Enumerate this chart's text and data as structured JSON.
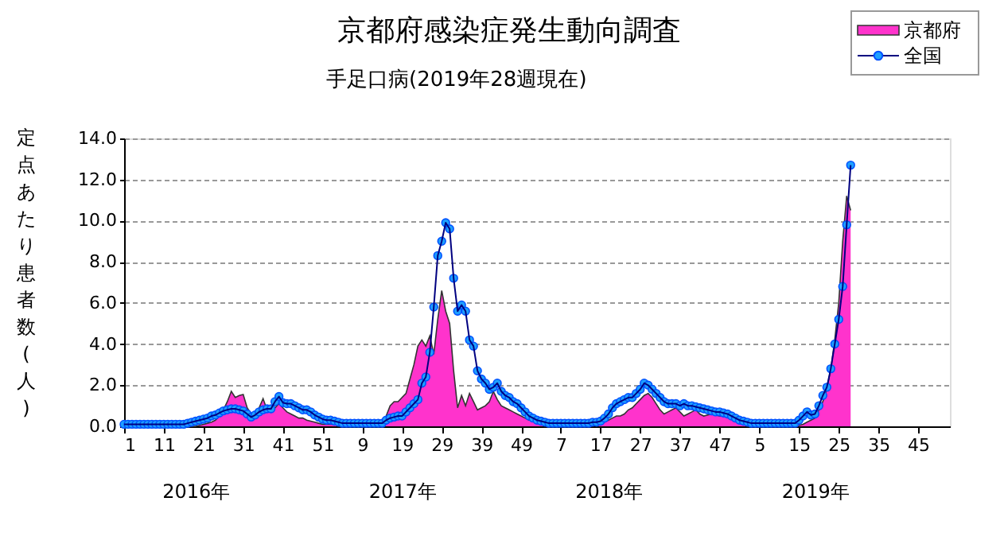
{
  "chart_data": {
    "type": "line",
    "title": "京都府感染症発生動向調査",
    "subtitle": "手足口病(2019年28週現在)",
    "ylabel": "定点あたり患者数(人)",
    "categories": [
      "1",
      null,
      null,
      null,
      null,
      null,
      null,
      null,
      null,
      null,
      "11",
      null,
      null,
      null,
      null,
      null,
      null,
      null,
      null,
      null,
      "21",
      null,
      null,
      null,
      null,
      null,
      null,
      null,
      null,
      null,
      "31",
      null,
      null,
      null,
      null,
      null,
      null,
      null,
      null,
      null,
      "41",
      null,
      null,
      null,
      null,
      null,
      null,
      null,
      null,
      null,
      "51",
      null,
      null,
      null,
      null,
      null,
      null,
      null,
      null,
      null,
      "9",
      null,
      null,
      null,
      null,
      null,
      null,
      null,
      null,
      null,
      "19",
      null,
      null,
      null,
      null,
      null,
      null,
      null,
      null,
      null,
      "29",
      null,
      null,
      null,
      null,
      null,
      null,
      null,
      null,
      null,
      "39",
      null,
      null,
      null,
      null,
      null,
      null,
      null,
      null,
      null,
      "49",
      null,
      null,
      null,
      null,
      null,
      null,
      null,
      null,
      null,
      "7",
      null,
      null,
      null,
      null,
      null,
      null,
      null,
      null,
      null,
      "17",
      null,
      null,
      null,
      null,
      null,
      null,
      null,
      null,
      null,
      "27",
      null,
      null,
      null,
      null,
      null,
      null,
      null,
      null,
      null,
      "37",
      null,
      null,
      null,
      null,
      null,
      null,
      null,
      null,
      null,
      "47",
      null,
      null,
      null,
      null,
      null,
      null,
      null,
      null,
      null,
      "5",
      null,
      null,
      null,
      null,
      null,
      null,
      null,
      null,
      null,
      "15",
      null,
      null,
      null,
      null,
      null,
      null,
      null,
      null,
      null,
      "25",
      null,
      null,
      null,
      null,
      null,
      null,
      null,
      null,
      null,
      "35",
      null,
      null,
      null,
      null,
      null,
      null,
      null,
      null,
      null,
      "45",
      null,
      null,
      null,
      null,
      null,
      null,
      null
    ],
    "series": [
      {
        "name": "京都府",
        "type": "area",
        "color": "#ff33cc",
        "values": [
          0,
          0,
          0,
          0,
          0,
          0,
          0,
          0,
          0,
          0,
          0,
          0,
          0,
          0,
          0,
          0,
          0,
          0,
          0,
          0.05,
          0.1,
          0.15,
          0.2,
          0.3,
          0.5,
          0.8,
          1.2,
          1.7,
          1.4,
          1.5,
          1.55,
          0.9,
          0.6,
          0.7,
          0.9,
          1.35,
          0.8,
          0.8,
          0.9,
          1.1,
          0.9,
          0.7,
          0.6,
          0.5,
          0.4,
          0.4,
          0.3,
          0.25,
          0.2,
          0.15,
          0.1,
          0.1,
          0.1,
          0.1,
          0.1,
          0.1,
          0.05,
          0.05,
          0.05,
          0.05,
          0.05,
          0.05,
          0.05,
          0.05,
          0.05,
          0.1,
          0.5,
          1.0,
          1.2,
          1.2,
          1.4,
          1.6,
          2.3,
          3.0,
          3.9,
          4.2,
          3.9,
          4.4,
          3.5,
          5.2,
          6.6,
          5.6,
          5.0,
          2.7,
          0.9,
          1.5,
          1.0,
          1.6,
          1.2,
          0.8,
          0.9,
          1.0,
          1.2,
          1.7,
          1.3,
          1.0,
          0.9,
          0.8,
          0.7,
          0.6,
          0.5,
          0.4,
          0.3,
          0.3,
          0.2,
          0.15,
          0.1,
          0.1,
          0.1,
          0.1,
          0.1,
          0.1,
          0.1,
          0.1,
          0.1,
          0.1,
          0.1,
          0.1,
          0.1,
          0.1,
          0.15,
          0.2,
          0.3,
          0.4,
          0.5,
          0.5,
          0.6,
          0.8,
          0.9,
          1.1,
          1.3,
          1.5,
          1.6,
          1.4,
          1.1,
          0.8,
          0.6,
          0.7,
          0.8,
          0.9,
          0.7,
          0.5,
          0.6,
          0.7,
          0.8,
          0.6,
          0.5,
          0.55,
          0.6,
          0.55,
          0.5,
          0.5,
          0.5,
          0.4,
          0.3,
          0.3,
          0.2,
          0.1,
          0.05,
          0.05,
          0.05,
          0.05,
          0.05,
          0.05,
          0.05,
          0.05,
          0.05,
          0.05,
          0.05,
          0.05,
          0.05,
          0.1,
          0.2,
          0.3,
          0.4,
          0.8,
          1.2,
          1.8,
          2.8,
          4.2,
          6.0,
          9.0,
          11.2,
          10.5,
          null,
          null,
          null,
          null,
          null,
          null,
          null,
          null,
          null,
          null,
          null,
          null,
          null,
          null,
          null,
          null,
          null,
          null,
          null,
          null,
          null,
          null,
          null,
          null
        ]
      },
      {
        "name": "全国",
        "color": "#1ea0ff",
        "marker": "circle",
        "values": [
          0.1,
          0.1,
          0.1,
          0.1,
          0.1,
          0.1,
          0.1,
          0.1,
          0.1,
          0.1,
          0.1,
          0.1,
          0.1,
          0.1,
          0.1,
          0.1,
          0.15,
          0.2,
          0.25,
          0.3,
          0.35,
          0.4,
          0.5,
          0.55,
          0.65,
          0.75,
          0.8,
          0.85,
          0.85,
          0.8,
          0.75,
          0.6,
          0.45,
          0.55,
          0.7,
          0.8,
          0.85,
          0.85,
          1.2,
          1.45,
          1.15,
          1.1,
          1.1,
          1.0,
          0.9,
          0.8,
          0.8,
          0.7,
          0.55,
          0.45,
          0.35,
          0.3,
          0.3,
          0.25,
          0.2,
          0.15,
          0.15,
          0.15,
          0.15,
          0.15,
          0.15,
          0.15,
          0.15,
          0.15,
          0.15,
          0.15,
          0.3,
          0.4,
          0.45,
          0.5,
          0.5,
          0.7,
          0.9,
          1.1,
          1.3,
          2.1,
          2.4,
          3.6,
          5.8,
          8.3,
          9.0,
          9.9,
          9.6,
          7.2,
          5.6,
          5.9,
          5.6,
          4.2,
          3.9,
          2.7,
          2.3,
          2.1,
          1.8,
          1.9,
          2.1,
          1.7,
          1.5,
          1.4,
          1.2,
          1.1,
          0.9,
          0.7,
          0.5,
          0.4,
          0.3,
          0.25,
          0.2,
          0.15,
          0.15,
          0.15,
          0.15,
          0.15,
          0.15,
          0.15,
          0.15,
          0.15,
          0.15,
          0.15,
          0.2,
          0.2,
          0.25,
          0.4,
          0.6,
          0.9,
          1.1,
          1.2,
          1.3,
          1.4,
          1.4,
          1.6,
          1.8,
          2.1,
          2.0,
          1.8,
          1.6,
          1.4,
          1.2,
          1.1,
          1.1,
          1.1,
          1.0,
          1.1,
          1.0,
          1.0,
          0.95,
          0.9,
          0.85,
          0.8,
          0.75,
          0.7,
          0.7,
          0.65,
          0.6,
          0.5,
          0.4,
          0.3,
          0.25,
          0.2,
          0.15,
          0.15,
          0.15,
          0.15,
          0.15,
          0.15,
          0.15,
          0.15,
          0.15,
          0.15,
          0.15,
          0.15,
          0.3,
          0.5,
          0.7,
          0.55,
          0.6,
          1.0,
          1.5,
          1.9,
          2.8,
          4.0,
          5.2,
          6.8,
          9.8,
          12.7,
          null,
          null,
          null,
          null,
          null,
          null,
          null,
          null,
          null,
          null,
          null,
          null,
          null,
          null,
          null,
          null,
          null,
          null,
          null,
          null,
          null,
          null,
          null,
          null
        ]
      }
    ],
    "ylim": [
      0,
      14
    ],
    "yticks": [
      {
        "value": 0,
        "label": "0.0"
      },
      {
        "value": 2,
        "label": "2.0"
      },
      {
        "value": 4,
        "label": "4.0"
      },
      {
        "value": 6,
        "label": "6.0"
      },
      {
        "value": 8,
        "label": "8.0"
      },
      {
        "value": 10,
        "label": "10.0"
      },
      {
        "value": 12,
        "label": "12.0"
      },
      {
        "value": 14,
        "label": "14.0"
      }
    ],
    "grid": "y",
    "legend": "top right",
    "line_style": "solid",
    "annotations": [
      "2016年",
      "2017年",
      "2018年",
      "2019年"
    ]
  }
}
